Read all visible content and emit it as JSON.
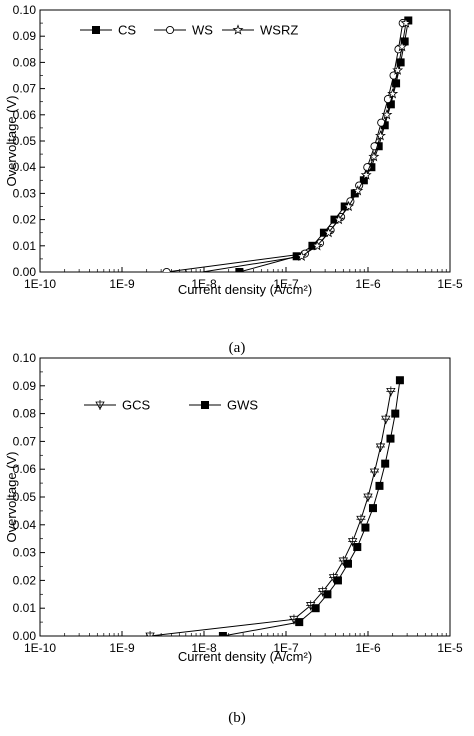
{
  "chart_data": [
    {
      "type": "line",
      "caption": "(a)",
      "xlabel": "Current density (A/cm²)",
      "ylabel": "Overvoltage (V)",
      "x_scale": "log",
      "xlim": [
        1e-10,
        1e-05
      ],
      "ylim": [
        0,
        0.1
      ],
      "x_tick_labels": [
        "1E-10",
        "1E-9",
        "1E-8",
        "1E-7",
        "1E-6",
        "1E-5"
      ],
      "y_tick_labels": [
        "0.00",
        "0.01",
        "0.02",
        "0.03",
        "0.04",
        "0.05",
        "0.06",
        "0.07",
        "0.08",
        "0.09",
        "0.10"
      ],
      "grid": false,
      "legend_position": "top-left",
      "series": [
        {
          "name": "CS",
          "marker": "filled-square",
          "x": [
            2.7e-08,
            1.35e-07,
            2.1e-07,
            2.9e-07,
            3.9e-07,
            5.2e-07,
            6.9e-07,
            8.9e-07,
            1.1e-06,
            1.35e-06,
            1.6e-06,
            1.9e-06,
            2.2e-06,
            2.5e-06,
            2.8e-06,
            3.1e-06
          ],
          "y": [
            0.0,
            0.006,
            0.01,
            0.015,
            0.02,
            0.025,
            0.03,
            0.035,
            0.04,
            0.048,
            0.056,
            0.064,
            0.072,
            0.08,
            0.088,
            0.096
          ]
        },
        {
          "name": "WS",
          "marker": "open-circle",
          "x": [
            3.5e-09,
            1.7e-07,
            2.6e-07,
            3.5e-07,
            4.7e-07,
            6.1e-07,
            7.8e-07,
            9.8e-07,
            1.2e-06,
            1.45e-06,
            1.75e-06,
            2.05e-06,
            2.35e-06,
            2.65e-06
          ],
          "y": [
            0.0,
            0.007,
            0.011,
            0.016,
            0.021,
            0.027,
            0.033,
            0.04,
            0.048,
            0.057,
            0.066,
            0.075,
            0.085,
            0.095
          ]
        },
        {
          "name": "WSRZ",
          "marker": "open-star",
          "x": [
            6e-09,
            1.55e-07,
            2.4e-07,
            3.3e-07,
            4.4e-07,
            5.8e-07,
            7.5e-07,
            9.5e-07,
            1.18e-06,
            1.42e-06,
            1.7e-06,
            2e-06,
            2.3e-06,
            2.6e-06,
            2.9e-06
          ],
          "y": [
            -0.001,
            0.006,
            0.01,
            0.015,
            0.02,
            0.025,
            0.031,
            0.037,
            0.044,
            0.052,
            0.06,
            0.068,
            0.077,
            0.086,
            0.095
          ]
        }
      ]
    },
    {
      "type": "line",
      "caption": "(b)",
      "xlabel": "Current density (A/cm²)",
      "ylabel": "Overvoltage (V)",
      "x_scale": "log",
      "xlim": [
        1e-10,
        1e-05
      ],
      "ylim": [
        0,
        0.1
      ],
      "x_tick_labels": [
        "1E-10",
        "1E-9",
        "1E-8",
        "1E-7",
        "1E-6",
        "1E-5"
      ],
      "y_tick_labels": [
        "0.00",
        "0.01",
        "0.02",
        "0.03",
        "0.04",
        "0.05",
        "0.06",
        "0.07",
        "0.08",
        "0.09",
        "0.10"
      ],
      "grid": false,
      "legend_position": "top-left",
      "series": [
        {
          "name": "GCS",
          "marker": "open-down-triangle-cross",
          "x": [
            2.2e-09,
            1.25e-07,
            2e-07,
            2.8e-07,
            3.8e-07,
            5e-07,
            6.5e-07,
            8.2e-07,
            1e-06,
            1.2e-06,
            1.42e-06,
            1.65e-06,
            1.9e-06
          ],
          "y": [
            0.0,
            0.006,
            0.011,
            0.016,
            0.021,
            0.027,
            0.034,
            0.042,
            0.05,
            0.059,
            0.068,
            0.078,
            0.088
          ]
        },
        {
          "name": "GWS",
          "marker": "filled-square",
          "x": [
            1.7e-08,
            1.45e-07,
            2.3e-07,
            3.2e-07,
            4.3e-07,
            5.7e-07,
            7.4e-07,
            9.3e-07,
            1.15e-06,
            1.38e-06,
            1.62e-06,
            1.88e-06,
            2.15e-06,
            2.45e-06
          ],
          "y": [
            0.0,
            0.005,
            0.01,
            0.015,
            0.02,
            0.026,
            0.032,
            0.039,
            0.046,
            0.054,
            0.062,
            0.071,
            0.08,
            0.092
          ]
        }
      ]
    }
  ]
}
